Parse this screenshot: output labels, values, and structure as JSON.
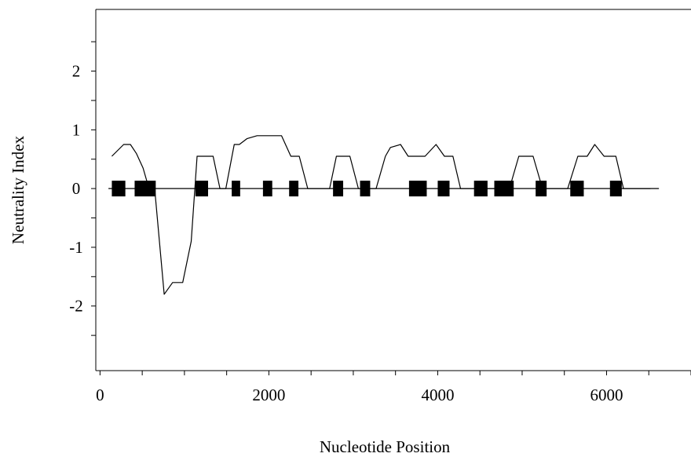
{
  "chart_data": {
    "type": "line",
    "title": "",
    "xlabel": "Nucleotide Position",
    "ylabel": "Neutrality Index",
    "xlim": [
      -50,
      7000
    ],
    "ylim": [
      -3.1,
      3.05
    ],
    "x_ticks": [
      0,
      2000,
      4000,
      6000
    ],
    "x_tick_labels": [
      "0",
      "2000",
      "4000",
      "6000"
    ],
    "y_tick_values": [
      2,
      1,
      0,
      -1,
      -2
    ],
    "y_tick_labels": [
      "2",
      "1",
      "0",
      "-1",
      "-2"
    ],
    "grid": false,
    "series": [
      {
        "x": [
          140,
          280,
          360,
          430,
          510,
          580,
          650,
          760,
          860,
          980,
          1080,
          1150,
          1250,
          1340,
          1420,
          1490,
          1590,
          1650,
          1740,
          1860,
          1980,
          2150,
          2260,
          2360,
          2460,
          2590,
          2720,
          2800,
          2860,
          2960,
          3060,
          3140,
          3270,
          3380,
          3440,
          3560,
          3650,
          3750,
          3850,
          3980,
          4080,
          4180,
          4270,
          4350,
          4450,
          4550,
          4750,
          4850,
          4960,
          5050,
          5130,
          5240,
          5420,
          5540,
          5660,
          5770,
          5860,
          5970,
          6050,
          6110,
          6200,
          6270,
          6370,
          6520
        ],
        "y": [
          0.55,
          0.75,
          0.75,
          0.6,
          0.35,
          0.0,
          -0.05,
          -1.8,
          -1.6,
          -1.6,
          -0.9,
          0.55,
          0.55,
          0.55,
          0.0,
          0.0,
          0.75,
          0.75,
          0.85,
          0.9,
          0.9,
          0.9,
          0.55,
          0.55,
          0.0,
          0.0,
          0.0,
          0.55,
          0.55,
          0.55,
          0.0,
          0.0,
          0.0,
          0.55,
          0.7,
          0.75,
          0.55,
          0.55,
          0.55,
          0.75,
          0.55,
          0.55,
          0.0,
          0.0,
          0.0,
          0.0,
          0.0,
          0.0,
          0.55,
          0.55,
          0.55,
          0.0,
          0.0,
          0.0,
          0.55,
          0.55,
          0.75,
          0.55,
          0.55,
          0.55,
          0.0,
          0.0,
          0.0,
          0.0
        ]
      }
    ],
    "baseline": {
      "y": 0,
      "x_start": 100,
      "x_end": 6620
    },
    "markers": {
      "shape": "filled-rectangle",
      "y": 0,
      "intervals": [
        [
          140,
          300
        ],
        [
          410,
          660
        ],
        [
          1130,
          1280
        ],
        [
          1560,
          1660
        ],
        [
          1930,
          2040
        ],
        [
          2240,
          2350
        ],
        [
          2760,
          2880
        ],
        [
          3080,
          3200
        ],
        [
          3660,
          3870
        ],
        [
          4000,
          4140
        ],
        [
          4430,
          4590
        ],
        [
          4670,
          4900
        ],
        [
          5160,
          5290
        ],
        [
          5570,
          5730
        ],
        [
          6040,
          6180
        ]
      ]
    }
  }
}
